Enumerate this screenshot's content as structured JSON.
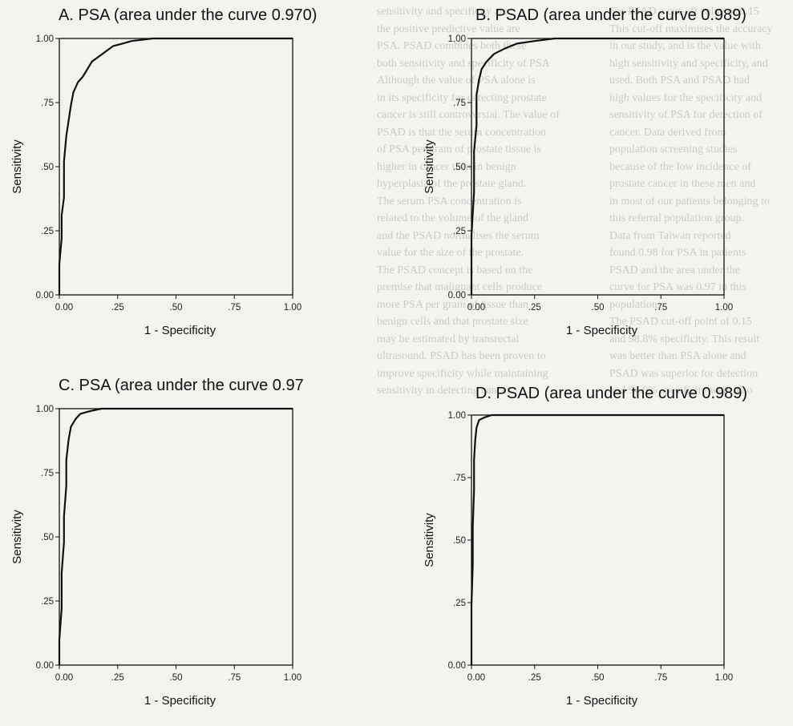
{
  "background_text": {
    "column_1": [
      "sensitivity and specificity are",
      "the positive predictive value are",
      "PSA. PSAD combines both these",
      "both sensitivity and specificity of PSA",
      "",
      "",
      "",
      "Although the value of PSA alone is",
      "in its specificity for detecting prostate",
      "cancer is still controversial. The value of",
      "PSAD is that the serum concentration",
      "of PSA per gram of prostate tissue is",
      "higher in cancer than in benign",
      "hyperplasia of the prostate gland.",
      "The serum PSA concentration is",
      "related to the volume of the gland",
      "and the PSAD normalises the serum",
      "value for the size of the prostate.",
      "The PSAD concept is based on the",
      "premise that malignant cells produce",
      "more PSA per gram of tissue than",
      "benign cells and that prostate size",
      "may be estimated by transrectal",
      "ultrasound. PSAD has been proven to",
      "improve specificity while maintaining",
      "sensitivity in detecting cancer."
    ],
    "column_2": [
      "For PSAD a cut-off value of 0.15",
      "This cut-off maximises the accuracy",
      "in our study, and is the value with",
      "high sensitivity and specificity, and",
      "used. Both PSA and PSAD had",
      "high values for the specificity and",
      "sensitivity of PSA for detection of",
      "cancer. Data derived from",
      "population screening studies",
      "because of the low incidence of",
      "prostate cancer in these men and",
      "in most of our patients belonging to",
      "this referral population group.",
      "",
      "Data from Taiwan reported",
      "found 0.98 for PSA in patients",
      "PSAD and the area under the",
      "curve for PSA was 0.97 in this",
      "population.",
      "",
      "The PSAD cut-off point of 0.15",
      "and 98.8% specificity. This result",
      "was better than PSA alone and",
      "PSAD was superior for detection",
      "and 94.9% specificity were also"
    ]
  },
  "axis_labels": {
    "x": "1 - Specificity",
    "y": "Sensitivity"
  },
  "chart_data": [
    {
      "type": "line",
      "title": "A. PSA (area under the curve 0.970)",
      "xlabel": "1 - Specificity",
      "ylabel": "Sensitivity",
      "xlim": [
        0,
        1
      ],
      "ylim": [
        0,
        1
      ],
      "xticks": [
        "0.00",
        ".25",
        ".50",
        ".75",
        "1.00"
      ],
      "yticks": [
        "0.00",
        ".25",
        ".50",
        ".75",
        "1.00"
      ],
      "points": [
        [
          0,
          0
        ],
        [
          0,
          0.12
        ],
        [
          0.01,
          0.22
        ],
        [
          0.01,
          0.31
        ],
        [
          0.02,
          0.38
        ],
        [
          0.02,
          0.52
        ],
        [
          0.03,
          0.62
        ],
        [
          0.04,
          0.68
        ],
        [
          0.05,
          0.74
        ],
        [
          0.06,
          0.79
        ],
        [
          0.08,
          0.83
        ],
        [
          0.1,
          0.85
        ],
        [
          0.12,
          0.88
        ],
        [
          0.14,
          0.91
        ],
        [
          0.17,
          0.93
        ],
        [
          0.2,
          0.95
        ],
        [
          0.23,
          0.97
        ],
        [
          0.27,
          0.98
        ],
        [
          0.31,
          0.99
        ],
        [
          0.4,
          1.0
        ],
        [
          1.0,
          1.0
        ]
      ]
    },
    {
      "type": "line",
      "title": "B. PSAD (area under the curve 0.989)",
      "xlabel": "1 - Specificity",
      "ylabel": "Sensitivity",
      "xlim": [
        0,
        1
      ],
      "ylim": [
        0,
        1
      ],
      "xticks": [
        "0.00",
        ".25",
        ".50",
        ".75",
        "1.00"
      ],
      "yticks": [
        "0.00",
        ".25",
        ".50",
        ".75",
        "1.00"
      ],
      "points": [
        [
          0,
          0
        ],
        [
          0,
          0.23
        ],
        [
          0.01,
          0.4
        ],
        [
          0.01,
          0.56
        ],
        [
          0.02,
          0.66
        ],
        [
          0.02,
          0.78
        ],
        [
          0.03,
          0.84
        ],
        [
          0.04,
          0.88
        ],
        [
          0.06,
          0.91
        ],
        [
          0.09,
          0.94
        ],
        [
          0.13,
          0.96
        ],
        [
          0.18,
          0.98
        ],
        [
          0.25,
          0.99
        ],
        [
          0.33,
          1.0
        ],
        [
          1.0,
          1.0
        ]
      ]
    },
    {
      "type": "line",
      "title": "C. PSA (area under the curve 0.97",
      "xlabel": "1 - Specificity",
      "ylabel": "Sensitivity",
      "xlim": [
        0,
        1
      ],
      "ylim": [
        0,
        1
      ],
      "xticks": [
        "0.00",
        ".25",
        ".50",
        ".75",
        "1.00"
      ],
      "yticks": [
        "0.00",
        ".25",
        ".50",
        ".75",
        "1.00"
      ],
      "points": [
        [
          0,
          0
        ],
        [
          0,
          0.1
        ],
        [
          0.01,
          0.22
        ],
        [
          0.01,
          0.36
        ],
        [
          0.02,
          0.48
        ],
        [
          0.02,
          0.58
        ],
        [
          0.03,
          0.7
        ],
        [
          0.03,
          0.8
        ],
        [
          0.04,
          0.88
        ],
        [
          0.05,
          0.93
        ],
        [
          0.07,
          0.96
        ],
        [
          0.09,
          0.98
        ],
        [
          0.13,
          0.99
        ],
        [
          0.18,
          1.0
        ],
        [
          1.0,
          1.0
        ]
      ]
    },
    {
      "type": "line",
      "title": "D. PSAD (area under the curve 0.989)",
      "xlabel": "1 - Specificity",
      "ylabel": "Sensitivity",
      "xlim": [
        0,
        1
      ],
      "ylim": [
        0,
        1
      ],
      "xticks": [
        "0.00",
        ".25",
        ".50",
        ".75",
        "1.00"
      ],
      "yticks": [
        "0.00",
        ".25",
        ".50",
        ".75",
        "1.00"
      ],
      "points": [
        [
          0,
          0
        ],
        [
          0,
          0.24
        ],
        [
          0.005,
          0.4
        ],
        [
          0.005,
          0.55
        ],
        [
          0.01,
          0.7
        ],
        [
          0.01,
          0.82
        ],
        [
          0.015,
          0.9
        ],
        [
          0.02,
          0.95
        ],
        [
          0.03,
          0.98
        ],
        [
          0.05,
          0.99
        ],
        [
          0.08,
          1.0
        ],
        [
          1.0,
          1.0
        ]
      ]
    }
  ]
}
